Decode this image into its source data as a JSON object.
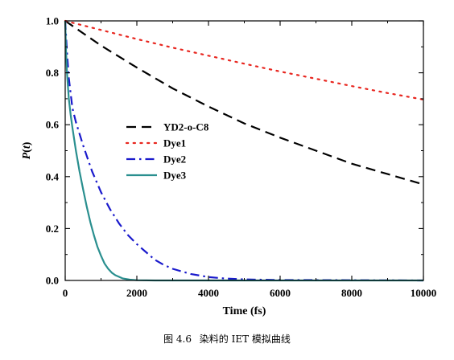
{
  "chart_data": {
    "type": "line",
    "xlabel": "Time (fs)",
    "ylabel_main": "P",
    "ylabel_var": "t",
    "xlim": [
      0,
      10000
    ],
    "ylim": [
      0,
      1.0
    ],
    "xticks": [
      0,
      2000,
      4000,
      6000,
      8000,
      10000
    ],
    "yticks": [
      0.0,
      0.2,
      0.4,
      0.6,
      0.8,
      1.0
    ],
    "xtick_labels": [
      "0",
      "2000",
      "4000",
      "6000",
      "8000",
      "10000"
    ],
    "ytick_labels": [
      "0.0",
      "0.2",
      "0.4",
      "0.6",
      "0.8",
      "1.0"
    ],
    "grid": false,
    "legend_position": "middle-left",
    "series": [
      {
        "name": "YD2-o-C8",
        "color": "#000000",
        "style": "dashed",
        "x": [
          0,
          1000,
          2000,
          3000,
          4000,
          5000,
          6000,
          7000,
          8000,
          9000,
          10000
        ],
        "y": [
          1.0,
          0.905,
          0.82,
          0.74,
          0.67,
          0.605,
          0.55,
          0.5,
          0.45,
          0.41,
          0.37
        ]
      },
      {
        "name": "Dye1",
        "color": "#e8261f",
        "style": "dotted",
        "x": [
          0,
          1000,
          2000,
          3000,
          4000,
          5000,
          6000,
          7000,
          8000,
          9000,
          10000
        ],
        "y": [
          1.0,
          0.965,
          0.93,
          0.897,
          0.866,
          0.835,
          0.805,
          0.777,
          0.749,
          0.722,
          0.697
        ]
      },
      {
        "name": "Dye2",
        "color": "#1a1acc",
        "style": "dashdot",
        "x": [
          0,
          50,
          100,
          200,
          300,
          500,
          750,
          1000,
          1250,
          1500,
          1750,
          2000,
          2250,
          2500,
          2750,
          3000,
          3500,
          4000,
          4500,
          5000,
          6000,
          8000,
          10000
        ],
        "y": [
          1.0,
          0.88,
          0.78,
          0.665,
          0.61,
          0.52,
          0.42,
          0.34,
          0.275,
          0.22,
          0.175,
          0.14,
          0.11,
          0.08,
          0.06,
          0.045,
          0.025,
          0.013,
          0.007,
          0.004,
          0.002,
          0.001,
          0.0
        ]
      },
      {
        "name": "Dye3",
        "color": "#2a8f8f",
        "style": "solid",
        "x": [
          0,
          25,
          50,
          100,
          150,
          200,
          300,
          400,
          500,
          600,
          700,
          800,
          900,
          1000,
          1100,
          1200,
          1300,
          1400,
          1600,
          1800,
          2000,
          2500,
          3000,
          5000,
          10000
        ],
        "y": [
          1.0,
          0.88,
          0.8,
          0.7,
          0.64,
          0.59,
          0.5,
          0.42,
          0.35,
          0.285,
          0.225,
          0.175,
          0.13,
          0.095,
          0.065,
          0.045,
          0.03,
          0.02,
          0.008,
          0.003,
          0.001,
          0.0,
          0.0,
          0.0,
          0.0
        ]
      }
    ]
  },
  "caption": {
    "figure_number": "图 4.6",
    "text": "染料的 IET 模拟曲线"
  }
}
